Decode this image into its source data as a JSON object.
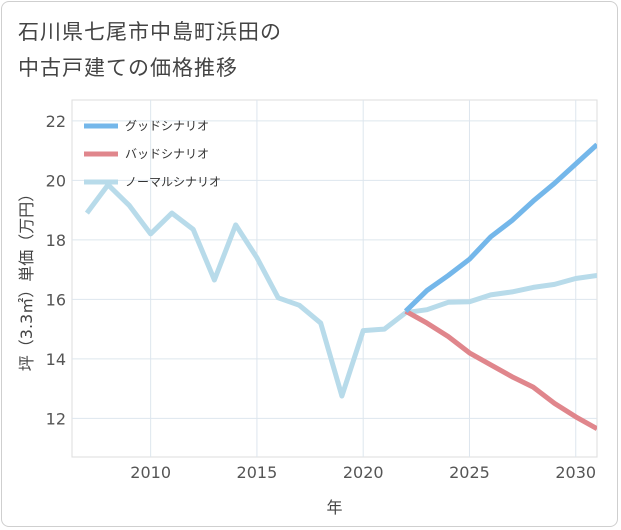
{
  "title_line1": "石川県七尾市中島町浜田の",
  "title_line2": "中古戸建ての価格推移",
  "chart_data": {
    "type": "line",
    "xlabel": "年",
    "ylabel": "坪（3.3㎡）単価（万円）",
    "xlim": [
      2006.3,
      2031
    ],
    "ylim": [
      10.7,
      22.7
    ],
    "xticks": [
      2010,
      2015,
      2020,
      2025,
      2030
    ],
    "yticks": [
      12,
      14,
      16,
      18,
      20,
      22
    ],
    "grid": true,
    "legend_position": "top-left",
    "series": [
      {
        "name": "グッドシナリオ",
        "color": "#74b7ea",
        "x": [
          2022,
          2023,
          2024,
          2025,
          2026,
          2027,
          2028,
          2029,
          2030,
          2031
        ],
        "y": [
          15.6,
          16.3,
          16.8,
          17.35,
          18.1,
          18.65,
          19.3,
          19.9,
          20.55,
          21.2
        ]
      },
      {
        "name": "バッドシナリオ",
        "color": "#e0868c",
        "x": [
          2022,
          2023,
          2024,
          2025,
          2026,
          2027,
          2028,
          2029,
          2030,
          2031
        ],
        "y": [
          15.6,
          15.2,
          14.75,
          14.2,
          13.8,
          13.4,
          13.05,
          12.5,
          12.05,
          11.65
        ]
      },
      {
        "name": "ノーマルシナリオ",
        "color": "#b8dbea",
        "x": [
          2007,
          2008,
          2009,
          2010,
          2011,
          2012,
          2013,
          2014,
          2015,
          2016,
          2017,
          2018,
          2019,
          2020,
          2021,
          2022,
          2023,
          2024,
          2025,
          2026,
          2027,
          2028,
          2029,
          2030,
          2031
        ],
        "y": [
          18.9,
          19.85,
          19.15,
          18.2,
          18.9,
          18.35,
          16.65,
          18.5,
          17.4,
          16.05,
          15.8,
          15.2,
          12.75,
          14.95,
          15.0,
          15.55,
          15.65,
          15.9,
          15.92,
          16.15,
          16.25,
          16.4,
          16.5,
          16.7,
          16.8
        ]
      }
    ]
  }
}
